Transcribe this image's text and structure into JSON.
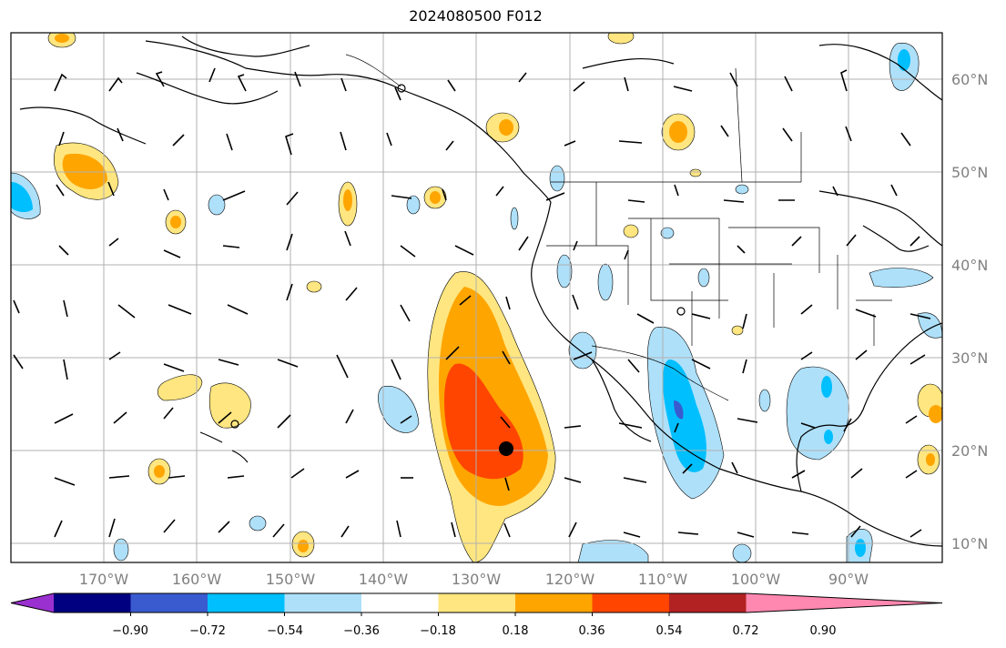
{
  "title": "2024080500 F012",
  "lat_labels": [
    "60°N",
    "50°N",
    "40°N",
    "30°N",
    "20°N",
    "10°N"
  ],
  "lon_labels": [
    "170°W",
    "160°W",
    "150°W",
    "140°W",
    "130°W",
    "120°W",
    "110°W",
    "100°W",
    "90°W"
  ],
  "colorbar": {
    "tick_labels": [
      "−0.90",
      "−0.72",
      "−0.54",
      "−0.36",
      "−0.18",
      "0.18",
      "0.36",
      "0.54",
      "0.72",
      "0.90"
    ],
    "colors": [
      "#9b30d0",
      "#000080",
      "#3a5bcf",
      "#00bfff",
      "#aee0fa",
      "#ffffff",
      "#ffe680",
      "#ffa500",
      "#ff4500",
      "#b22222",
      "#ff88b0"
    ]
  },
  "colors": {
    "grid": "#b0b0b0",
    "coast": "#000000",
    "axis_text": "#808080"
  }
}
